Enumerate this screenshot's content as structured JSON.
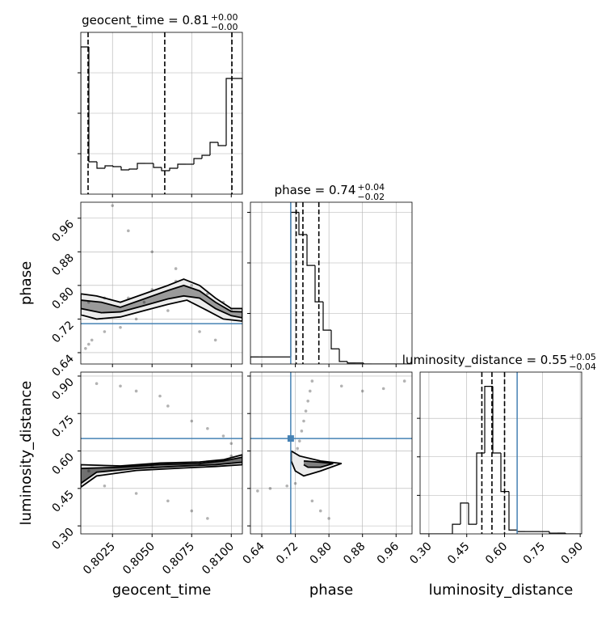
{
  "chart_data": {
    "type": "corner",
    "grid": true,
    "hist_color": "#000000",
    "point_color": "#000000",
    "contour_color": "#000000",
    "truth_color": "#4682b4",
    "parameters": [
      {
        "name": "geocent_time",
        "title": {
          "text": "geocent_time = 0.81",
          "upper": "+0.00",
          "lower": "−0.00"
        },
        "lim": [
          0.8005,
          0.8107
        ],
        "ticks": [
          0.8025,
          {
            "value": 0.805,
            "label": "0.8050"
          },
          0.8075,
          {
            "value": 0.81,
            "label": "0.8100"
          }
        ],
        "quantiles": [
          0.80096,
          0.8058,
          0.81004
        ],
        "hist": {
          "bins": [
            0.8005,
            0.80101,
            0.80152,
            0.80203,
            0.80254,
            0.80305,
            0.80356,
            0.80407,
            0.80458,
            0.80509,
            0.8056,
            0.80611,
            0.80662,
            0.80713,
            0.80764,
            0.80815,
            0.80866,
            0.80917,
            0.80968,
            0.81019,
            0.8107
          ],
          "values": [
            3.64,
            0.8,
            0.64,
            0.7,
            0.68,
            0.6,
            0.62,
            0.76,
            0.76,
            0.66,
            0.58,
            0.64,
            0.74,
            0.74,
            0.88,
            0.96,
            1.28,
            1.2,
            2.86,
            2.86
          ],
          "ylim": [
            0,
            4
          ],
          "yticks": [
            1,
            2,
            3
          ]
        }
      },
      {
        "name": "phase",
        "title": {
          "text": "phase = 0.74",
          "upper": "+0.04",
          "lower": "−0.02"
        },
        "lim": [
          0.613,
          0.998
        ],
        "ticks": [
          0.64,
          0.72,
          {
            "value": 0.8,
            "label": "0.80"
          },
          0.88,
          0.96
        ],
        "truth": 0.709,
        "quantiles": [
          0.722,
          0.738,
          0.776
        ],
        "hist": {
          "bins": [
            0.613,
            0.63225,
            0.6515,
            0.67075,
            0.69,
            0.70925,
            0.7285,
            0.74775,
            0.767,
            0.78625,
            0.8055,
            0.82475,
            0.844,
            0.86325,
            0.8825,
            0.90175,
            0.921,
            0.94025,
            0.9595,
            0.97875,
            0.998
          ],
          "values": [
            0.14,
            0.14,
            0.14,
            0.14,
            0.14,
            3.0,
            2.56,
            1.95,
            1.23,
            0.67,
            0.3,
            0.05,
            0.02,
            0.02,
            0,
            0,
            0,
            0,
            0,
            0
          ],
          "ylim": [
            0,
            3.2
          ],
          "yticks": [
            1,
            2,
            3
          ]
        }
      },
      {
        "name": "luminosity_distance",
        "title": {
          "text": "luminosity_distance = 0.55",
          "upper": "+0.05",
          "lower": "−0.04"
        },
        "lim": [
          0.265,
          0.906
        ],
        "ylim": [
          0.268,
          0.916
        ],
        "ticks": [
          {
            "value": 0.3,
            "label": "0.30"
          },
          0.45,
          {
            "value": 0.6,
            "label": "0.60"
          },
          0.75,
          {
            "value": 0.9,
            "label": "0.90"
          }
        ],
        "truth": 0.65,
        "quantiles": [
          0.51,
          0.55,
          0.6
        ],
        "hist": {
          "bins": [
            0.265,
            0.29705,
            0.3291,
            0.36115,
            0.3932,
            0.42525,
            0.4573,
            0.48935,
            0.5214,
            0.55345,
            0.5855,
            0.61755,
            0.6496,
            0.68165,
            0.7137,
            0.74575,
            0.7778,
            0.80985,
            0.8419,
            0.87395,
            0.906
          ],
          "values": [
            0,
            0,
            0,
            0,
            0.25,
            0.8,
            0.25,
            2.1,
            3.83,
            2.1,
            1.1,
            0.1,
            0.06,
            0.06,
            0.06,
            0.06,
            0.02,
            0.02,
            0,
            0
          ],
          "ylim": [
            0,
            4.2
          ],
          "yticks": [
            1,
            2,
            3
          ]
        }
      }
    ],
    "pairs": [
      {
        "points": {
          "x": [
            0.801,
            0.8012,
            0.8008,
            0.802,
            0.803,
            0.804,
            0.8025,
            0.8035,
            0.805,
            0.8065,
            0.801,
            0.802,
            0.8035,
            0.805,
            0.8065,
            0.8075,
            0.8085,
            0.8095,
            0.81,
            0.808,
            0.809,
            0.806,
            0.8045
          ],
          "y": [
            0.66,
            0.67,
            0.65,
            0.69,
            0.7,
            0.72,
            0.99,
            0.93,
            0.88,
            0.84,
            0.76,
            0.77,
            0.77,
            0.79,
            0.81,
            0.8,
            0.78,
            0.76,
            0.74,
            0.69,
            0.67,
            0.74,
            0.76
          ]
        },
        "contours": [
          {
            "fill": "#ececec",
            "x": [
              0.8005,
              0.8015,
              0.803,
              0.8045,
              0.806,
              0.807,
              0.808,
              0.809,
              0.81,
              0.8107,
              0.8107,
              0.8095,
              0.8085,
              0.8072,
              0.806,
              0.8045,
              0.803,
              0.8015,
              0.8005,
              0.8005
            ],
            "y": [
              0.78,
              0.775,
              0.76,
              0.78,
              0.8,
              0.815,
              0.8,
              0.77,
              0.745,
              0.745,
              0.715,
              0.72,
              0.74,
              0.765,
              0.755,
              0.74,
              0.725,
              0.72,
              0.73,
              0.78
            ]
          },
          {
            "fill": "#9a9a9a",
            "x": [
              0.8005,
              0.8018,
              0.803,
              0.8045,
              0.806,
              0.807,
              0.808,
              0.809,
              0.81,
              0.8107,
              0.8107,
              0.81,
              0.809,
              0.808,
              0.807,
              0.806,
              0.8045,
              0.803,
              0.8018,
              0.8005,
              0.8005
            ],
            "y": [
              0.765,
              0.76,
              0.748,
              0.768,
              0.788,
              0.8,
              0.787,
              0.76,
              0.738,
              0.737,
              0.723,
              0.728,
              0.745,
              0.77,
              0.775,
              0.768,
              0.752,
              0.737,
              0.735,
              0.745,
              0.765
            ]
          }
        ]
      },
      {
        "points": {
          "x": [
            0.804,
            0.8055,
            0.806,
            0.8075,
            0.8085,
            0.8095,
            0.81,
            0.8015,
            0.803,
            0.802,
            0.804,
            0.806,
            0.8075,
            0.8085,
            0.801,
            0.805,
            0.808,
            0.81
          ],
          "y": [
            0.84,
            0.82,
            0.78,
            0.72,
            0.69,
            0.66,
            0.63,
            0.87,
            0.86,
            0.46,
            0.43,
            0.4,
            0.36,
            0.33,
            0.52,
            0.54,
            0.55,
            0.58
          ]
        },
        "contours": [
          {
            "fill": "#ececec",
            "x": [
              0.8005,
              0.803,
              0.8055,
              0.808,
              0.8095,
              0.8107,
              0.8107,
              0.809,
              0.807,
              0.804,
              0.8015,
              0.8005,
              0.8005
            ],
            "y": [
              0.545,
              0.54,
              0.552,
              0.556,
              0.565,
              0.585,
              0.545,
              0.538,
              0.532,
              0.522,
              0.5,
              0.455,
              0.545
            ]
          },
          {
            "fill": "#707070",
            "x": [
              0.8005,
              0.803,
              0.8055,
              0.808,
              0.8095,
              0.8107,
              0.8107,
              0.809,
              0.807,
              0.804,
              0.8015,
              0.8005,
              0.8005
            ],
            "y": [
              0.53,
              0.535,
              0.546,
              0.55,
              0.56,
              0.575,
              0.555,
              0.545,
              0.54,
              0.53,
              0.515,
              0.47,
              0.53
            ]
          }
        ]
      },
      {
        "points": {
          "x": [
            0.76,
            0.755,
            0.75,
            0.745,
            0.74,
            0.735,
            0.73,
            0.725,
            0.83,
            0.88,
            0.93,
            0.98,
            0.7,
            0.66,
            0.63,
            0.72,
            0.76,
            0.78,
            0.8
          ],
          "y": [
            0.88,
            0.84,
            0.8,
            0.76,
            0.72,
            0.68,
            0.64,
            0.61,
            0.86,
            0.84,
            0.85,
            0.88,
            0.46,
            0.45,
            0.44,
            0.47,
            0.4,
            0.36,
            0.33
          ]
        },
        "contours": [
          {
            "fill": "#ececec",
            "x": [
              0.71,
              0.73,
              0.78,
              0.83,
              0.78,
              0.74,
              0.72,
              0.71,
              0.71
            ],
            "y": [
              0.6,
              0.58,
              0.56,
              0.55,
              0.52,
              0.5,
              0.52,
              0.56,
              0.6
            ]
          },
          {
            "fill": "#808080",
            "x": [
              0.74,
              0.78,
              0.81,
              0.78,
              0.75,
              0.74
            ],
            "y": [
              0.56,
              0.555,
              0.55,
              0.535,
              0.535,
              0.545
            ]
          }
        ]
      }
    ]
  }
}
